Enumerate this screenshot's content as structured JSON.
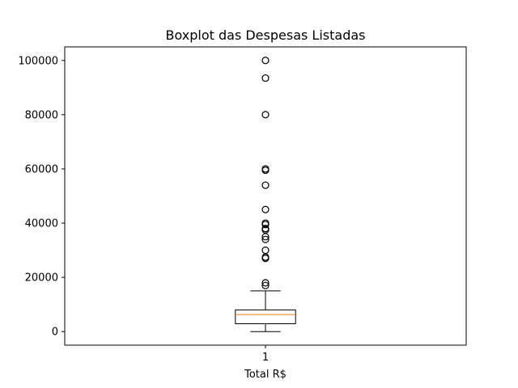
{
  "chart_data": {
    "type": "boxplot",
    "title": "Boxplot das Despesas Listadas",
    "xlabel": "Total R$",
    "ylabel": "",
    "categories": [
      "1"
    ],
    "ylim": [
      -5000,
      105000
    ],
    "yticks": [
      0,
      20000,
      40000,
      60000,
      80000,
      100000
    ],
    "ytick_labels": [
      "0",
      "20000",
      "40000",
      "60000",
      "80000",
      "100000"
    ],
    "grid": false,
    "legend": "none",
    "colors": {
      "box": "#000000",
      "median": "#ff7f0e",
      "flier": "#000000"
    },
    "boxes": [
      {
        "name": "1",
        "whisker_low": 0,
        "q1": 2900,
        "median": 6300,
        "q3": 8000,
        "whisker_high": 15000,
        "fliers": [
          17000,
          18000,
          27000,
          27500,
          30000,
          34000,
          35000,
          37500,
          38000,
          39500,
          40000,
          45000,
          54000,
          59500,
          60000,
          80000,
          93500,
          100000
        ]
      }
    ]
  }
}
